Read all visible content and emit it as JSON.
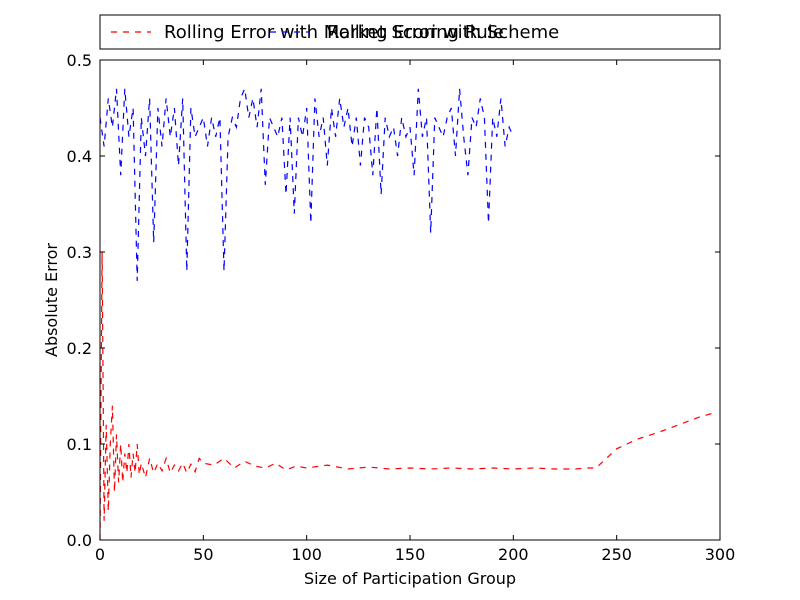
{
  "chart_data": {
    "type": "line",
    "title": "",
    "xlabel": "Size of Participation Group",
    "ylabel": "Absolute Error",
    "xlim": [
      0,
      300
    ],
    "ylim": [
      0.0,
      0.5
    ],
    "xticks": [
      0,
      50,
      100,
      150,
      200,
      250,
      300
    ],
    "yticks": [
      0.0,
      0.1,
      0.2,
      0.3,
      0.4,
      0.5
    ],
    "xtick_labels": [
      "0",
      "50",
      "100",
      "150",
      "200",
      "250",
      "300"
    ],
    "ytick_labels": [
      "0.0",
      "0.1",
      "0.2",
      "0.3",
      "0.4",
      "0.5"
    ],
    "grid": false,
    "legend_position": "top, overlapping",
    "series": [
      {
        "name": "Rolling Error with Market Scoring Rule",
        "color": "#ff0000",
        "style": "dashed",
        "x": [
          0,
          1,
          2,
          3,
          4,
          5,
          6,
          7,
          8,
          9,
          10,
          11,
          12,
          13,
          14,
          15,
          16,
          17,
          18,
          19,
          20,
          22,
          24,
          26,
          28,
          30,
          32,
          34,
          36,
          38,
          40,
          42,
          44,
          46,
          48,
          50,
          55,
          60,
          65,
          70,
          75,
          80,
          85,
          90,
          95,
          100,
          110,
          120,
          130,
          140,
          150,
          160,
          170,
          180,
          190,
          200,
          210,
          220,
          230,
          235,
          240,
          250,
          260,
          270,
          280,
          290,
          298
        ],
        "y": [
          0.0,
          0.3,
          0.02,
          0.12,
          0.03,
          0.1,
          0.14,
          0.05,
          0.11,
          0.06,
          0.1,
          0.06,
          0.09,
          0.07,
          0.1,
          0.065,
          0.09,
          0.07,
          0.1,
          0.068,
          0.08,
          0.065,
          0.085,
          0.07,
          0.08,
          0.072,
          0.085,
          0.07,
          0.078,
          0.072,
          0.08,
          0.07,
          0.079,
          0.071,
          0.085,
          0.08,
          0.078,
          0.085,
          0.075,
          0.082,
          0.077,
          0.075,
          0.08,
          0.073,
          0.077,
          0.075,
          0.078,
          0.074,
          0.076,
          0.074,
          0.075,
          0.074,
          0.075,
          0.074,
          0.075,
          0.074,
          0.075,
          0.074,
          0.074,
          0.075,
          0.075,
          0.095,
          0.105,
          0.112,
          0.12,
          0.128,
          0.133
        ]
      },
      {
        "name": "Rolling Error with Scheme",
        "color": "#0000ff",
        "style": "dashed",
        "x": [
          0,
          2,
          4,
          6,
          8,
          10,
          12,
          14,
          16,
          18,
          20,
          22,
          24,
          26,
          28,
          30,
          32,
          34,
          36,
          38,
          40,
          42,
          44,
          46,
          48,
          50,
          52,
          54,
          56,
          58,
          60,
          62,
          64,
          66,
          68,
          70,
          72,
          74,
          76,
          78,
          80,
          82,
          84,
          86,
          88,
          90,
          92,
          94,
          96,
          98,
          100,
          102,
          104,
          106,
          108,
          110,
          112,
          114,
          116,
          118,
          120,
          122,
          124,
          126,
          128,
          130,
          132,
          134,
          136,
          138,
          140,
          142,
          144,
          146,
          148,
          150,
          152,
          154,
          156,
          158,
          160,
          162,
          164,
          166,
          168,
          170,
          172,
          174,
          176,
          178,
          180,
          182,
          184,
          186,
          188,
          190,
          192,
          194,
          196,
          198,
          200
        ],
        "y": [
          0.44,
          0.41,
          0.46,
          0.43,
          0.47,
          0.38,
          0.47,
          0.42,
          0.45,
          0.27,
          0.44,
          0.4,
          0.46,
          0.31,
          0.45,
          0.41,
          0.46,
          0.42,
          0.45,
          0.39,
          0.46,
          0.28,
          0.45,
          0.42,
          0.43,
          0.44,
          0.41,
          0.44,
          0.42,
          0.44,
          0.28,
          0.42,
          0.44,
          0.43,
          0.46,
          0.47,
          0.44,
          0.46,
          0.43,
          0.47,
          0.37,
          0.44,
          0.43,
          0.42,
          0.44,
          0.36,
          0.44,
          0.34,
          0.44,
          0.42,
          0.45,
          0.33,
          0.46,
          0.42,
          0.44,
          0.39,
          0.45,
          0.42,
          0.46,
          0.43,
          0.45,
          0.41,
          0.44,
          0.39,
          0.44,
          0.43,
          0.38,
          0.45,
          0.36,
          0.44,
          0.42,
          0.43,
          0.4,
          0.44,
          0.42,
          0.43,
          0.38,
          0.47,
          0.42,
          0.44,
          0.32,
          0.44,
          0.43,
          0.42,
          0.44,
          0.45,
          0.4,
          0.47,
          0.42,
          0.38,
          0.44,
          0.43,
          0.46,
          0.44,
          0.33,
          0.44,
          0.42,
          0.46,
          0.41,
          0.43,
          0.42
        ]
      }
    ]
  }
}
